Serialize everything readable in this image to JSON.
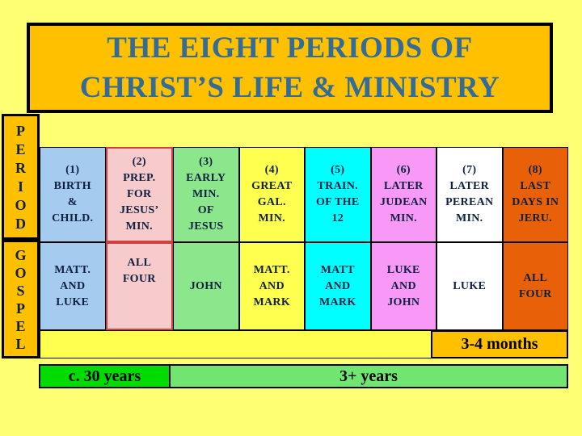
{
  "title": {
    "line1": "THE EIGHT PERIODS OF",
    "line2": "CHRIST’S LIFE & MINISTRY"
  },
  "row_labels": {
    "period": "PERIOD",
    "gospel": "GOSPEL"
  },
  "columns": [
    {
      "period": "(1)\nBIRTH\n&\nCHILD.",
      "gospel": "MATT.\nAND\nLUKE",
      "color": "#A5CBEF"
    },
    {
      "period": "(2)\nPREP.\nFOR\nJESUS’\nMIN.",
      "gospel": "ALL\nFOUR",
      "color": "#F7CBCB",
      "border_color": "#D04040"
    },
    {
      "period": "(3)\nEARLY\nMIN.\nOF\nJESUS",
      "gospel": "JOHN",
      "color": "#8CE78C"
    },
    {
      "period": "(4)\nGREAT\nGAL.\nMIN.",
      "gospel": "MATT.\nAND\nMARK",
      "color": "#FFFF4F"
    },
    {
      "period": "(5)\nTRAIN.\nOF THE\n12",
      "gospel": "MATT\nAND\nMARK",
      "color": "#00FFFF"
    },
    {
      "period": "(6)\nLATER\nJUDEAN\nMIN.",
      "gospel": "LUKE\nAND\nJOHN",
      "color": "#F899F8"
    },
    {
      "period": "(7)\nLATER\nPEREAN\nMIN.",
      "gospel": "LUKE",
      "color": "#FFFFFF"
    },
    {
      "period": "(8)\nLAST\nDAYS IN\nJERU.",
      "gospel": "ALL\nFOUR",
      "color": "#E86007"
    }
  ],
  "timeline": {
    "early_label": "c. 30 years",
    "ministry_label": "3+ years",
    "months_label": "3-4 months"
  },
  "colors": {
    "background": "#FFFF73",
    "gold": "#FFC000",
    "title_text": "#336B99",
    "cell_text": "#0F2040",
    "strip_yellow": "#FFFF4F",
    "early_years_green": "#00DC00",
    "ministry_years_green": "#70E670",
    "months_box_gold": "#FFC000",
    "column2_border_red": "#D04040"
  }
}
